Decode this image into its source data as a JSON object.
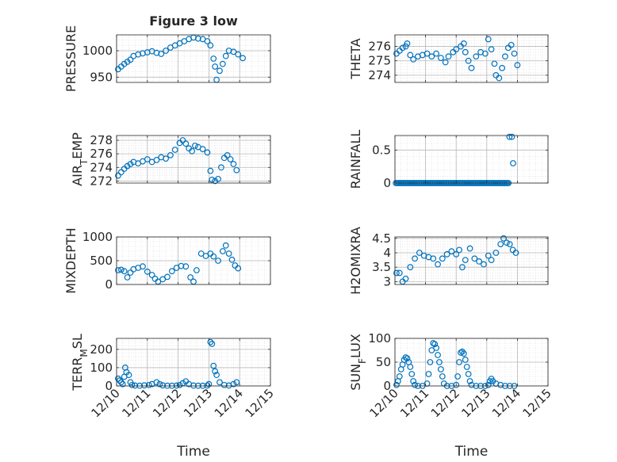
{
  "figure_title": "Figure 3 low",
  "colors": {
    "marker": "#0072BD",
    "axis": "#262626",
    "grid": "#b8b8b8",
    "minor_grid": "#d9d9d9"
  },
  "chart_data": [
    {
      "type": "scatter",
      "id": "pressure",
      "title": "Figure 3 low",
      "ylabel": "PRESSURE",
      "xlabel": "",
      "xlim": [
        0,
        5
      ],
      "ylim": [
        940,
        1030
      ],
      "yticks": [
        950,
        1000
      ],
      "ytick_labels": [
        "950",
        "1000"
      ],
      "xticks": [
        0,
        1,
        2,
        3,
        4,
        5
      ],
      "xtick_labels": [],
      "grid": true,
      "minor_grid": true,
      "points": [
        [
          0.05,
          965
        ],
        [
          0.15,
          970
        ],
        [
          0.25,
          975
        ],
        [
          0.35,
          979
        ],
        [
          0.45,
          983
        ],
        [
          0.55,
          990
        ],
        [
          0.7,
          993
        ],
        [
          0.85,
          995
        ],
        [
          1.0,
          997
        ],
        [
          1.15,
          999
        ],
        [
          1.3,
          996
        ],
        [
          1.45,
          994
        ],
        [
          1.6,
          1000
        ],
        [
          1.75,
          1006
        ],
        [
          1.9,
          1010
        ],
        [
          2.05,
          1014
        ],
        [
          2.2,
          1018
        ],
        [
          2.35,
          1022
        ],
        [
          2.5,
          1025
        ],
        [
          2.65,
          1023
        ],
        [
          2.8,
          1022
        ],
        [
          2.95,
          1018
        ],
        [
          3.05,
          1010
        ],
        [
          3.15,
          985
        ],
        [
          3.2,
          970
        ],
        [
          3.25,
          945
        ],
        [
          3.35,
          962
        ],
        [
          3.45,
          975
        ],
        [
          3.55,
          990
        ],
        [
          3.65,
          1000
        ],
        [
          3.8,
          998
        ],
        [
          3.95,
          993
        ],
        [
          4.1,
          986
        ]
      ]
    },
    {
      "type": "scatter",
      "id": "theta",
      "title": "",
      "ylabel": "THETA",
      "xlabel": "",
      "xlim": [
        0,
        5
      ],
      "ylim": [
        273.5,
        276.8
      ],
      "yticks": [
        274,
        275,
        276
      ],
      "ytick_labels": [
        "274",
        "275",
        "276"
      ],
      "xticks": [
        0,
        1,
        2,
        3,
        4,
        5
      ],
      "xtick_labels": [],
      "grid": true,
      "minor_grid": true,
      "points": [
        [
          0.05,
          275.5
        ],
        [
          0.15,
          275.7
        ],
        [
          0.25,
          275.9
        ],
        [
          0.35,
          276.0
        ],
        [
          0.4,
          276.2
        ],
        [
          0.5,
          275.4
        ],
        [
          0.6,
          275.1
        ],
        [
          0.75,
          275.3
        ],
        [
          0.9,
          275.4
        ],
        [
          1.05,
          275.5
        ],
        [
          1.2,
          275.3
        ],
        [
          1.35,
          275.5
        ],
        [
          1.5,
          275.2
        ],
        [
          1.65,
          274.9
        ],
        [
          1.75,
          275.3
        ],
        [
          1.9,
          275.6
        ],
        [
          2.0,
          275.8
        ],
        [
          2.15,
          276.0
        ],
        [
          2.25,
          276.2
        ],
        [
          2.3,
          275.6
        ],
        [
          2.4,
          275.0
        ],
        [
          2.5,
          274.5
        ],
        [
          2.65,
          275.3
        ],
        [
          2.8,
          275.6
        ],
        [
          2.95,
          275.5
        ],
        [
          3.05,
          276.5
        ],
        [
          3.15,
          275.8
        ],
        [
          3.25,
          274.8
        ],
        [
          3.3,
          274.0
        ],
        [
          3.4,
          273.8
        ],
        [
          3.5,
          274.5
        ],
        [
          3.6,
          275.3
        ],
        [
          3.7,
          275.9
        ],
        [
          3.8,
          276.1
        ],
        [
          3.9,
          275.5
        ],
        [
          4.0,
          274.7
        ]
      ]
    },
    {
      "type": "scatter",
      "id": "air_temp",
      "title": "",
      "ylabel": "AIR_TEMP",
      "xlabel": "",
      "xlim": [
        0,
        5
      ],
      "ylim": [
        271.7,
        278.7
      ],
      "yticks": [
        272,
        274,
        276,
        278
      ],
      "ytick_labels": [
        "272",
        "274",
        "276",
        "278"
      ],
      "xticks": [
        0,
        1,
        2,
        3,
        4,
        5
      ],
      "xtick_labels": [],
      "grid": true,
      "minor_grid": true,
      "points": [
        [
          0.05,
          272.8
        ],
        [
          0.15,
          273.3
        ],
        [
          0.25,
          273.8
        ],
        [
          0.35,
          274.2
        ],
        [
          0.45,
          274.5
        ],
        [
          0.55,
          274.8
        ],
        [
          0.7,
          274.6
        ],
        [
          0.85,
          274.9
        ],
        [
          1.0,
          275.2
        ],
        [
          1.15,
          274.8
        ],
        [
          1.3,
          275.1
        ],
        [
          1.45,
          275.5
        ],
        [
          1.6,
          275.3
        ],
        [
          1.75,
          275.8
        ],
        [
          1.9,
          276.6
        ],
        [
          2.05,
          277.6
        ],
        [
          2.15,
          278.0
        ],
        [
          2.25,
          277.5
        ],
        [
          2.35,
          276.8
        ],
        [
          2.45,
          276.4
        ],
        [
          2.55,
          277.2
        ],
        [
          2.65,
          277.0
        ],
        [
          2.8,
          276.7
        ],
        [
          2.95,
          276.2
        ],
        [
          3.05,
          273.5
        ],
        [
          3.1,
          272.2
        ],
        [
          3.2,
          272.0
        ],
        [
          3.3,
          272.3
        ],
        [
          3.4,
          274.0
        ],
        [
          3.5,
          275.4
        ],
        [
          3.6,
          275.8
        ],
        [
          3.7,
          275.2
        ],
        [
          3.8,
          274.5
        ],
        [
          3.9,
          273.6
        ]
      ]
    },
    {
      "type": "scatter",
      "id": "rainfall",
      "title": "",
      "ylabel": "RAINFALL",
      "xlabel": "",
      "xlim": [
        0,
        5
      ],
      "ylim": [
        0,
        0.72
      ],
      "yticks": [
        0,
        0.5
      ],
      "ytick_labels": [
        "0",
        "0.5"
      ],
      "xticks": [
        0,
        1,
        2,
        3,
        4,
        5
      ],
      "xtick_labels": [],
      "grid": true,
      "minor_grid": true,
      "flat_run": {
        "x_start": 0.03,
        "x_end": 3.72,
        "value": 0,
        "step": 0.04
      },
      "points": [
        [
          3.74,
          0.7
        ],
        [
          3.82,
          0.7
        ],
        [
          3.86,
          0.3
        ]
      ]
    },
    {
      "type": "scatter",
      "id": "mixdepth",
      "title": "",
      "ylabel": "MIXDEPTH",
      "xlabel": "",
      "xlim": [
        0,
        5
      ],
      "ylim": [
        0,
        1000
      ],
      "yticks": [
        0,
        500,
        1000
      ],
      "ytick_labels": [
        "0",
        "500",
        "1000"
      ],
      "xticks": [
        0,
        1,
        2,
        3,
        4,
        5
      ],
      "xtick_labels": [],
      "grid": true,
      "minor_grid": true,
      "points": [
        [
          0.05,
          300
        ],
        [
          0.15,
          310
        ],
        [
          0.25,
          280
        ],
        [
          0.35,
          150
        ],
        [
          0.45,
          250
        ],
        [
          0.55,
          320
        ],
        [
          0.7,
          350
        ],
        [
          0.85,
          380
        ],
        [
          1.0,
          270
        ],
        [
          1.15,
          200
        ],
        [
          1.25,
          120
        ],
        [
          1.35,
          60
        ],
        [
          1.5,
          110
        ],
        [
          1.65,
          160
        ],
        [
          1.8,
          280
        ],
        [
          1.95,
          350
        ],
        [
          2.1,
          390
        ],
        [
          2.25,
          380
        ],
        [
          2.4,
          150
        ],
        [
          2.5,
          60
        ],
        [
          2.6,
          300
        ],
        [
          2.75,
          650
        ],
        [
          2.9,
          600
        ],
        [
          3.05,
          650
        ],
        [
          3.15,
          590
        ],
        [
          3.3,
          500
        ],
        [
          3.45,
          700
        ],
        [
          3.55,
          820
        ],
        [
          3.65,
          650
        ],
        [
          3.75,
          520
        ],
        [
          3.85,
          400
        ],
        [
          3.95,
          340
        ]
      ]
    },
    {
      "type": "scatter",
      "id": "h2omixra",
      "title": "",
      "ylabel": "H2OMIXRA",
      "xlabel": "",
      "xlim": [
        0,
        5
      ],
      "ylim": [
        2.9,
        4.55
      ],
      "yticks": [
        3,
        3.5,
        4,
        4.5
      ],
      "ytick_labels": [
        "3",
        "3.5",
        "4",
        "4.5"
      ],
      "xticks": [
        0,
        1,
        2,
        3,
        4,
        5
      ],
      "xtick_labels": [],
      "grid": true,
      "minor_grid": true,
      "points": [
        [
          0.05,
          3.3
        ],
        [
          0.15,
          3.3
        ],
        [
          0.25,
          3.0
        ],
        [
          0.35,
          3.1
        ],
        [
          0.5,
          3.5
        ],
        [
          0.65,
          3.8
        ],
        [
          0.8,
          4.0
        ],
        [
          0.95,
          3.9
        ],
        [
          1.1,
          3.85
        ],
        [
          1.25,
          3.8
        ],
        [
          1.4,
          3.6
        ],
        [
          1.55,
          3.8
        ],
        [
          1.7,
          3.95
        ],
        [
          1.85,
          4.05
        ],
        [
          2.0,
          3.95
        ],
        [
          2.1,
          4.1
        ],
        [
          2.2,
          3.5
        ],
        [
          2.3,
          3.75
        ],
        [
          2.45,
          4.15
        ],
        [
          2.6,
          3.8
        ],
        [
          2.75,
          3.7
        ],
        [
          2.9,
          3.6
        ],
        [
          3.05,
          3.9
        ],
        [
          3.15,
          3.75
        ],
        [
          3.3,
          4.0
        ],
        [
          3.45,
          4.3
        ],
        [
          3.55,
          4.5
        ],
        [
          3.65,
          4.35
        ],
        [
          3.75,
          4.3
        ],
        [
          3.85,
          4.1
        ],
        [
          3.95,
          4.0
        ]
      ]
    },
    {
      "type": "scatter",
      "id": "terr_msl",
      "title": "",
      "ylabel": "TERR_MSL",
      "xlabel": "Time",
      "xlim": [
        0,
        5
      ],
      "ylim": [
        0,
        260
      ],
      "yticks": [
        0,
        100,
        200
      ],
      "ytick_labels": [
        "0",
        "100",
        "200"
      ],
      "xticks": [
        0,
        1,
        2,
        3,
        4,
        5
      ],
      "xtick_labels": [
        "12/10",
        "12/11",
        "12/12",
        "12/13",
        "12/14",
        "12/15"
      ],
      "grid": true,
      "minor_grid": true,
      "points": [
        [
          0.05,
          40
        ],
        [
          0.1,
          30
        ],
        [
          0.15,
          20
        ],
        [
          0.2,
          10
        ],
        [
          0.25,
          50
        ],
        [
          0.28,
          100
        ],
        [
          0.32,
          75
        ],
        [
          0.4,
          60
        ],
        [
          0.45,
          20
        ],
        [
          0.5,
          5
        ],
        [
          0.6,
          2
        ],
        [
          0.75,
          1
        ],
        [
          0.9,
          3
        ],
        [
          1.05,
          5
        ],
        [
          1.15,
          10
        ],
        [
          1.3,
          20
        ],
        [
          1.4,
          10
        ],
        [
          1.5,
          3
        ],
        [
          1.65,
          1
        ],
        [
          1.8,
          1
        ],
        [
          1.95,
          2
        ],
        [
          2.05,
          5
        ],
        [
          2.15,
          15
        ],
        [
          2.25,
          25
        ],
        [
          2.35,
          10
        ],
        [
          2.5,
          2
        ],
        [
          2.65,
          1
        ],
        [
          2.8,
          1
        ],
        [
          2.95,
          2
        ],
        [
          3.0,
          10
        ],
        [
          3.05,
          240
        ],
        [
          3.1,
          230
        ],
        [
          3.15,
          110
        ],
        [
          3.2,
          80
        ],
        [
          3.25,
          60
        ],
        [
          3.35,
          20
        ],
        [
          3.5,
          5
        ],
        [
          3.65,
          2
        ],
        [
          3.8,
          10
        ],
        [
          3.9,
          20
        ]
      ]
    },
    {
      "type": "scatter",
      "id": "sun_flux",
      "title": "",
      "ylabel": "SUN_FLUX",
      "xlabel": "Time",
      "xlim": [
        0,
        5
      ],
      "ylim": [
        0,
        100
      ],
      "yticks": [
        0,
        50,
        100
      ],
      "ytick_labels": [
        "0",
        "50",
        "100"
      ],
      "xticks": [
        0,
        1,
        2,
        3,
        4,
        5
      ],
      "xtick_labels": [
        "12/10",
        "12/11",
        "12/12",
        "12/13",
        "12/14",
        "12/15"
      ],
      "grid": true,
      "minor_grid": true,
      "points": [
        [
          0.05,
          2
        ],
        [
          0.1,
          10
        ],
        [
          0.15,
          20
        ],
        [
          0.2,
          35
        ],
        [
          0.25,
          45
        ],
        [
          0.3,
          55
        ],
        [
          0.35,
          60
        ],
        [
          0.4,
          58
        ],
        [
          0.45,
          50
        ],
        [
          0.5,
          40
        ],
        [
          0.55,
          25
        ],
        [
          0.6,
          10
        ],
        [
          0.65,
          2
        ],
        [
          0.75,
          0
        ],
        [
          0.9,
          0
        ],
        [
          1.05,
          5
        ],
        [
          1.1,
          25
        ],
        [
          1.15,
          50
        ],
        [
          1.2,
          75
        ],
        [
          1.25,
          90
        ],
        [
          1.3,
          88
        ],
        [
          1.35,
          80
        ],
        [
          1.4,
          65
        ],
        [
          1.45,
          50
        ],
        [
          1.5,
          35
        ],
        [
          1.55,
          20
        ],
        [
          1.6,
          5
        ],
        [
          1.7,
          0
        ],
        [
          1.85,
          0
        ],
        [
          2.0,
          2
        ],
        [
          2.05,
          20
        ],
        [
          2.1,
          50
        ],
        [
          2.15,
          70
        ],
        [
          2.2,
          72
        ],
        [
          2.25,
          68
        ],
        [
          2.3,
          55
        ],
        [
          2.35,
          40
        ],
        [
          2.4,
          25
        ],
        [
          2.45,
          10
        ],
        [
          2.5,
          2
        ],
        [
          2.65,
          0
        ],
        [
          2.8,
          0
        ],
        [
          2.95,
          0
        ],
        [
          3.05,
          2
        ],
        [
          3.1,
          10
        ],
        [
          3.15,
          15
        ],
        [
          3.2,
          10
        ],
        [
          3.3,
          5
        ],
        [
          3.45,
          2
        ],
        [
          3.6,
          0
        ],
        [
          3.75,
          0
        ],
        [
          3.9,
          0
        ]
      ]
    }
  ]
}
